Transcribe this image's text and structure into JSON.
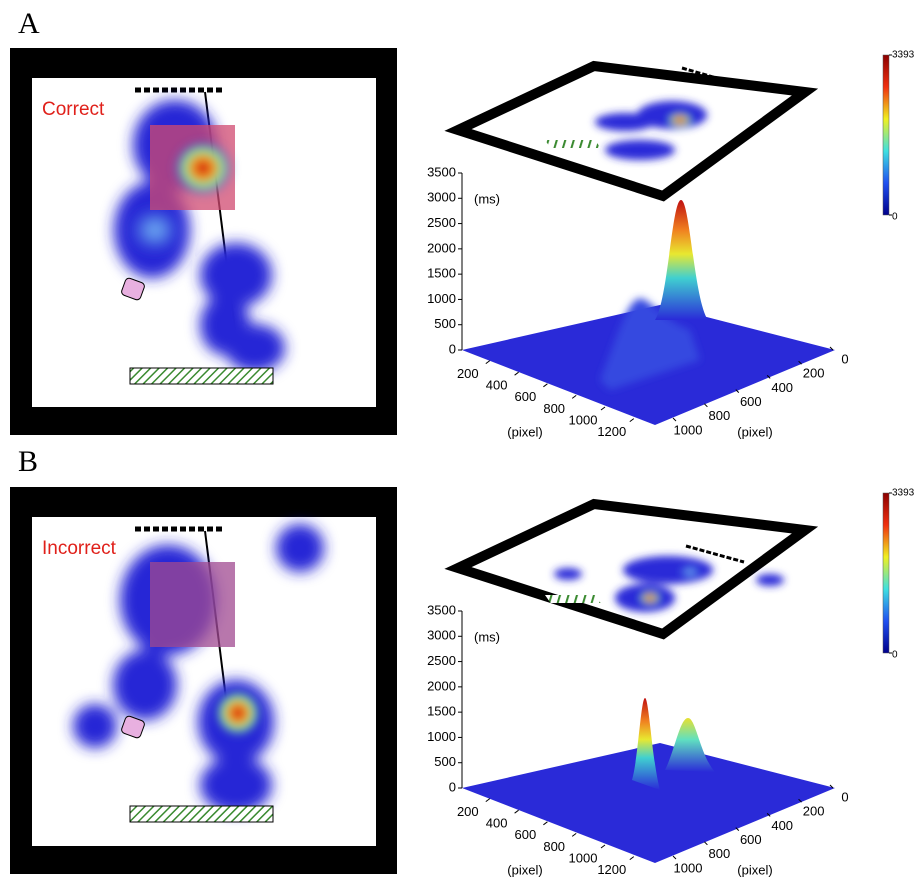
{
  "panels": [
    {
      "label": "A",
      "condition": "Correct",
      "colorbar": {
        "max": 3393,
        "min": 0
      },
      "zaxis": {
        "label": "(ms)",
        "ticks": [
          0,
          500,
          1000,
          1500,
          2000,
          2500,
          3000,
          3500
        ]
      },
      "xaxis": {
        "label": "(pixel)",
        "ticks": [
          200,
          400,
          600,
          800,
          1000,
          1200
        ]
      },
      "yaxis": {
        "label": "(pixel)",
        "ticks": [
          0,
          200,
          400,
          600,
          800,
          1000
        ]
      }
    },
    {
      "label": "B",
      "condition": "Incorrect",
      "colorbar": {
        "max": 3393,
        "min": 0
      },
      "zaxis": {
        "label": "(ms)",
        "ticks": [
          0,
          500,
          1000,
          1500,
          2000,
          2500,
          3000,
          3500
        ]
      },
      "xaxis": {
        "label": "(pixel)",
        "ticks": [
          200,
          400,
          600,
          800,
          1000,
          1200
        ]
      },
      "yaxis": {
        "label": "(pixel)",
        "ticks": [
          0,
          200,
          400,
          600,
          800,
          1000
        ]
      }
    }
  ]
}
